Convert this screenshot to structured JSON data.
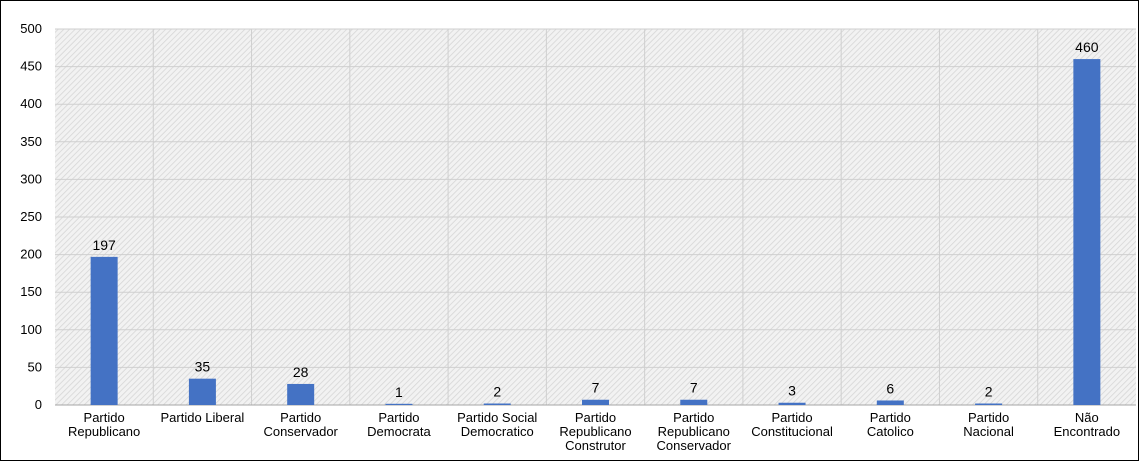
{
  "chart_data": {
    "type": "bar",
    "title": "",
    "xlabel": "",
    "ylabel": "",
    "ylim": [
      0,
      500
    ],
    "yticks": [
      0,
      50,
      100,
      150,
      200,
      250,
      300,
      350,
      400,
      450,
      500
    ],
    "grid": true,
    "legend": "none",
    "bar_color": "#4472C4",
    "background_pattern": "diagonal-hatch",
    "categories": [
      [
        "Partido",
        "Republicano"
      ],
      [
        "Partido Liberal"
      ],
      [
        "Partido",
        "Conservador"
      ],
      [
        "Partido",
        "Democrata"
      ],
      [
        "Partido Social",
        "Democratico"
      ],
      [
        "Partido",
        "Republicano",
        "Construtor"
      ],
      [
        "Partido",
        "Republicano",
        "Conservador"
      ],
      [
        "Partido",
        "Constitucional"
      ],
      [
        "Partido",
        "Catolico"
      ],
      [
        "Partido",
        "Nacional"
      ],
      [
        "Não",
        "Encontrado"
      ]
    ],
    "values": [
      197,
      35,
      28,
      1,
      2,
      7,
      7,
      3,
      6,
      2,
      460
    ],
    "data_labels": [
      "197",
      "35",
      "28",
      "1",
      "2",
      "7",
      "7",
      "3",
      "6",
      "2",
      "460"
    ]
  }
}
